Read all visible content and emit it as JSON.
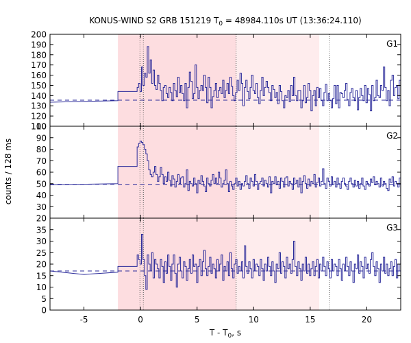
{
  "chart_data": {
    "type": "line",
    "title": "KONUS-WIND S2 GRB 151219 T0 = 48984.110s UT (13:36:24.110)",
    "title_parts": {
      "pre": "KONUS-WIND S2 GRB 151219 T",
      "sub": "0",
      "post": " = 48984.110s UT (13:36:24.110)"
    },
    "xlabel": "T - T0, s",
    "xlabel_parts": {
      "pre": "T - T",
      "sub": "0",
      "post": ", s"
    },
    "ylabel": "counts / 128 ms",
    "xlim": [
      -8,
      23
    ],
    "x_ticks": [
      -5,
      0,
      5,
      10,
      15,
      20
    ],
    "shading": {
      "dark": {
        "x": [
          -2.0,
          8.45
        ],
        "color": "#fddde0"
      },
      "light": {
        "x": [
          8.45,
          15.8
        ],
        "color": "#feeced"
      }
    },
    "vlines": [
      -0.05,
      0.25,
      8.45,
      16.7
    ],
    "line_color": "#2a2a9a",
    "panels": [
      {
        "name": "G1",
        "ylim": [
          110,
          200
        ],
        "yticks": [
          110,
          120,
          130,
          140,
          150,
          160,
          170,
          180,
          190,
          200
        ],
        "background": 135.5,
        "coarse": [
          [
            -8,
            133.5
          ],
          [
            -2,
            135
          ],
          [
            -2,
            144
          ],
          [
            -0.3,
            144
          ]
        ],
        "fine_start": -0.3,
        "values": [
          148,
          152,
          144,
          168,
          150,
          162,
          158,
          188,
          162,
          175,
          152,
          165,
          150,
          146,
          160,
          152,
          145,
          135,
          148,
          150,
          142,
          138,
          148,
          143,
          135,
          152,
          145,
          139,
          158,
          143,
          150,
          142,
          135,
          152,
          128,
          148,
          163,
          154,
          137,
          142,
          170,
          148,
          137,
          145,
          150,
          145,
          160,
          148,
          133,
          158,
          148,
          128,
          139,
          145,
          152,
          138,
          145,
          148,
          142,
          155,
          138,
          145,
          152,
          142,
          158,
          149,
          140,
          135,
          143,
          155,
          145,
          162,
          152,
          130,
          148,
          155,
          144,
          137,
          148,
          160,
          145,
          142,
          152,
          138,
          132,
          145,
          158,
          140,
          148,
          154,
          148,
          143,
          135,
          150,
          146,
          138,
          143,
          132,
          150,
          144,
          135,
          128,
          140,
          138,
          145,
          134,
          150,
          140,
          158,
          140,
          135,
          145,
          145,
          128,
          135,
          150,
          133,
          138,
          152,
          145,
          125,
          140,
          145,
          130,
          148,
          138,
          147,
          135,
          130,
          143,
          151,
          135,
          142,
          135,
          128,
          137,
          150,
          132,
          150,
          128,
          143,
          142,
          138,
          145,
          152,
          136,
          130,
          143,
          147,
          138,
          135,
          145,
          126,
          138,
          147,
          140,
          135,
          150,
          133,
          147,
          141,
          125,
          150,
          135,
          138,
          155,
          140,
          138,
          150,
          145,
          168,
          148,
          135,
          145,
          130,
          155,
          160,
          140,
          148,
          150,
          137,
          155,
          142,
          133,
          160,
          140,
          148,
          143,
          150,
          140,
          155,
          133,
          145,
          160,
          138,
          148,
          144,
          152,
          125,
          142,
          150,
          137,
          165,
          145,
          135,
          145,
          152,
          141,
          133,
          152,
          125,
          142,
          148,
          137,
          153,
          148,
          155,
          140,
          134,
          148,
          145,
          130,
          145,
          152,
          144,
          135,
          142,
          150,
          152,
          133,
          145,
          140,
          138,
          155,
          152,
          140,
          138,
          155,
          148,
          153,
          152
        ]
      },
      {
        "name": "G2",
        "ylim": [
          20,
          100
        ],
        "yticks": [
          20,
          30,
          40,
          50,
          60,
          70,
          80,
          90,
          100
        ],
        "background": 49.5,
        "coarse": [
          [
            -8,
            49
          ],
          [
            -2,
            50
          ],
          [
            -2,
            65
          ],
          [
            -0.3,
            65
          ]
        ],
        "fine_start": -0.3,
        "values": [
          82,
          85,
          87,
          86,
          84,
          80,
          76,
          70,
          62,
          58,
          56,
          60,
          65,
          58,
          52,
          56,
          64,
          58,
          50,
          56,
          52,
          60,
          53,
          48,
          57,
          54,
          47,
          52,
          58,
          50,
          55,
          56,
          47,
          50,
          62,
          44,
          52,
          50,
          48,
          55,
          50,
          42,
          53,
          50,
          57,
          52,
          48,
          43,
          55,
          50,
          48,
          53,
          58,
          50,
          55,
          50,
          60,
          55,
          47,
          50,
          53,
          62,
          50,
          43,
          52,
          48,
          45,
          50,
          55,
          48,
          52,
          45,
          50,
          48,
          52,
          57,
          50,
          46,
          55,
          52,
          48,
          58,
          52,
          45,
          50,
          52,
          55,
          48,
          53,
          50,
          47,
          56,
          42,
          52,
          50,
          56,
          49,
          52,
          46,
          55,
          52,
          47,
          55,
          56,
          48,
          52,
          50,
          45,
          55,
          50,
          53,
          47,
          55,
          42,
          52,
          57,
          50,
          46,
          54,
          48,
          52,
          50,
          58,
          47,
          51,
          55,
          48,
          52,
          63,
          50,
          46,
          55,
          52,
          48,
          56,
          49,
          52,
          47,
          55,
          50,
          46,
          52,
          55,
          50,
          48,
          45,
          52,
          55,
          50,
          47,
          53,
          48,
          52,
          46,
          50,
          55,
          48,
          45,
          52,
          50,
          48,
          54,
          51,
          56,
          49,
          52,
          50,
          47,
          55,
          48,
          52,
          50,
          46,
          44,
          54,
          51,
          56,
          48,
          52,
          50,
          47,
          55,
          42,
          52,
          50,
          56,
          49,
          52,
          46,
          55,
          52,
          38,
          55,
          56,
          48,
          52,
          50,
          45,
          55,
          50,
          53,
          47,
          55,
          43,
          52,
          57,
          50,
          46,
          54,
          48,
          52,
          50,
          58,
          47,
          51,
          55,
          48,
          52,
          50,
          50,
          46,
          55,
          52,
          48,
          56,
          49,
          52,
          47,
          55,
          50,
          46,
          52,
          55,
          50,
          48,
          45,
          52,
          55
        ]
      },
      {
        "name": "G3",
        "ylim": [
          0,
          40
        ],
        "yticks": [
          0,
          5,
          10,
          15,
          20,
          25,
          30,
          35
        ],
        "background": 17,
        "coarse": [
          [
            -8,
            17
          ],
          [
            -5,
            15.5
          ],
          [
            -2,
            16.5
          ],
          [
            -2,
            19
          ],
          [
            -0.3,
            19
          ]
        ],
        "fine_start": -0.3,
        "values": [
          24,
          22,
          20,
          33,
          22,
          15,
          9,
          24,
          20,
          17,
          25,
          14,
          22,
          20,
          18,
          14,
          22,
          19,
          12,
          21,
          16,
          24,
          19,
          13,
          20,
          24,
          16,
          10,
          20,
          23,
          17,
          14,
          21,
          19,
          13,
          18,
          22,
          16,
          24,
          19,
          20,
          12,
          19,
          22,
          15,
          21,
          26,
          18,
          15,
          19,
          23,
          16,
          20,
          18,
          14,
          22,
          17,
          20,
          24,
          13,
          19,
          17,
          21,
          15,
          25,
          18,
          14,
          20,
          22,
          16,
          19,
          17,
          21,
          14,
          28,
          19,
          16,
          21,
          18,
          14,
          22,
          17,
          20,
          19,
          15,
          22,
          18,
          13,
          20,
          17,
          23,
          19,
          15,
          21,
          17,
          12,
          20,
          18,
          25,
          16,
          21,
          19,
          14,
          23,
          18,
          20,
          16,
          22,
          30,
          19,
          15,
          21,
          18,
          13,
          20,
          17,
          23,
          16,
          20,
          15,
          18,
          21,
          15,
          19,
          22,
          14,
          20,
          17,
          23,
          19,
          15,
          21,
          18,
          14,
          22,
          17,
          20,
          19,
          15,
          22,
          18,
          13,
          20,
          17,
          23,
          19,
          15,
          21,
          17,
          12,
          20,
          18,
          24,
          16,
          21,
          19,
          14,
          23,
          18,
          20,
          16,
          22,
          25,
          19,
          15,
          21,
          18,
          12,
          20,
          17,
          23,
          16,
          20,
          15,
          18,
          21,
          15,
          19,
          22,
          14,
          20,
          17,
          23,
          19,
          15,
          21,
          18,
          14,
          22,
          17,
          20,
          19,
          15,
          22,
          18,
          13,
          20,
          17,
          23,
          19,
          15,
          21,
          17,
          12,
          20,
          18,
          24,
          16,
          21,
          19,
          14,
          23,
          18,
          20,
          16,
          22,
          24,
          19,
          15,
          21,
          18,
          13,
          20,
          17,
          23,
          16,
          20,
          15,
          18,
          21,
          32,
          19,
          22,
          14,
          20,
          17,
          23,
          19,
          15,
          21,
          18,
          14,
          22,
          17,
          20,
          19,
          15
        ]
      }
    ]
  }
}
